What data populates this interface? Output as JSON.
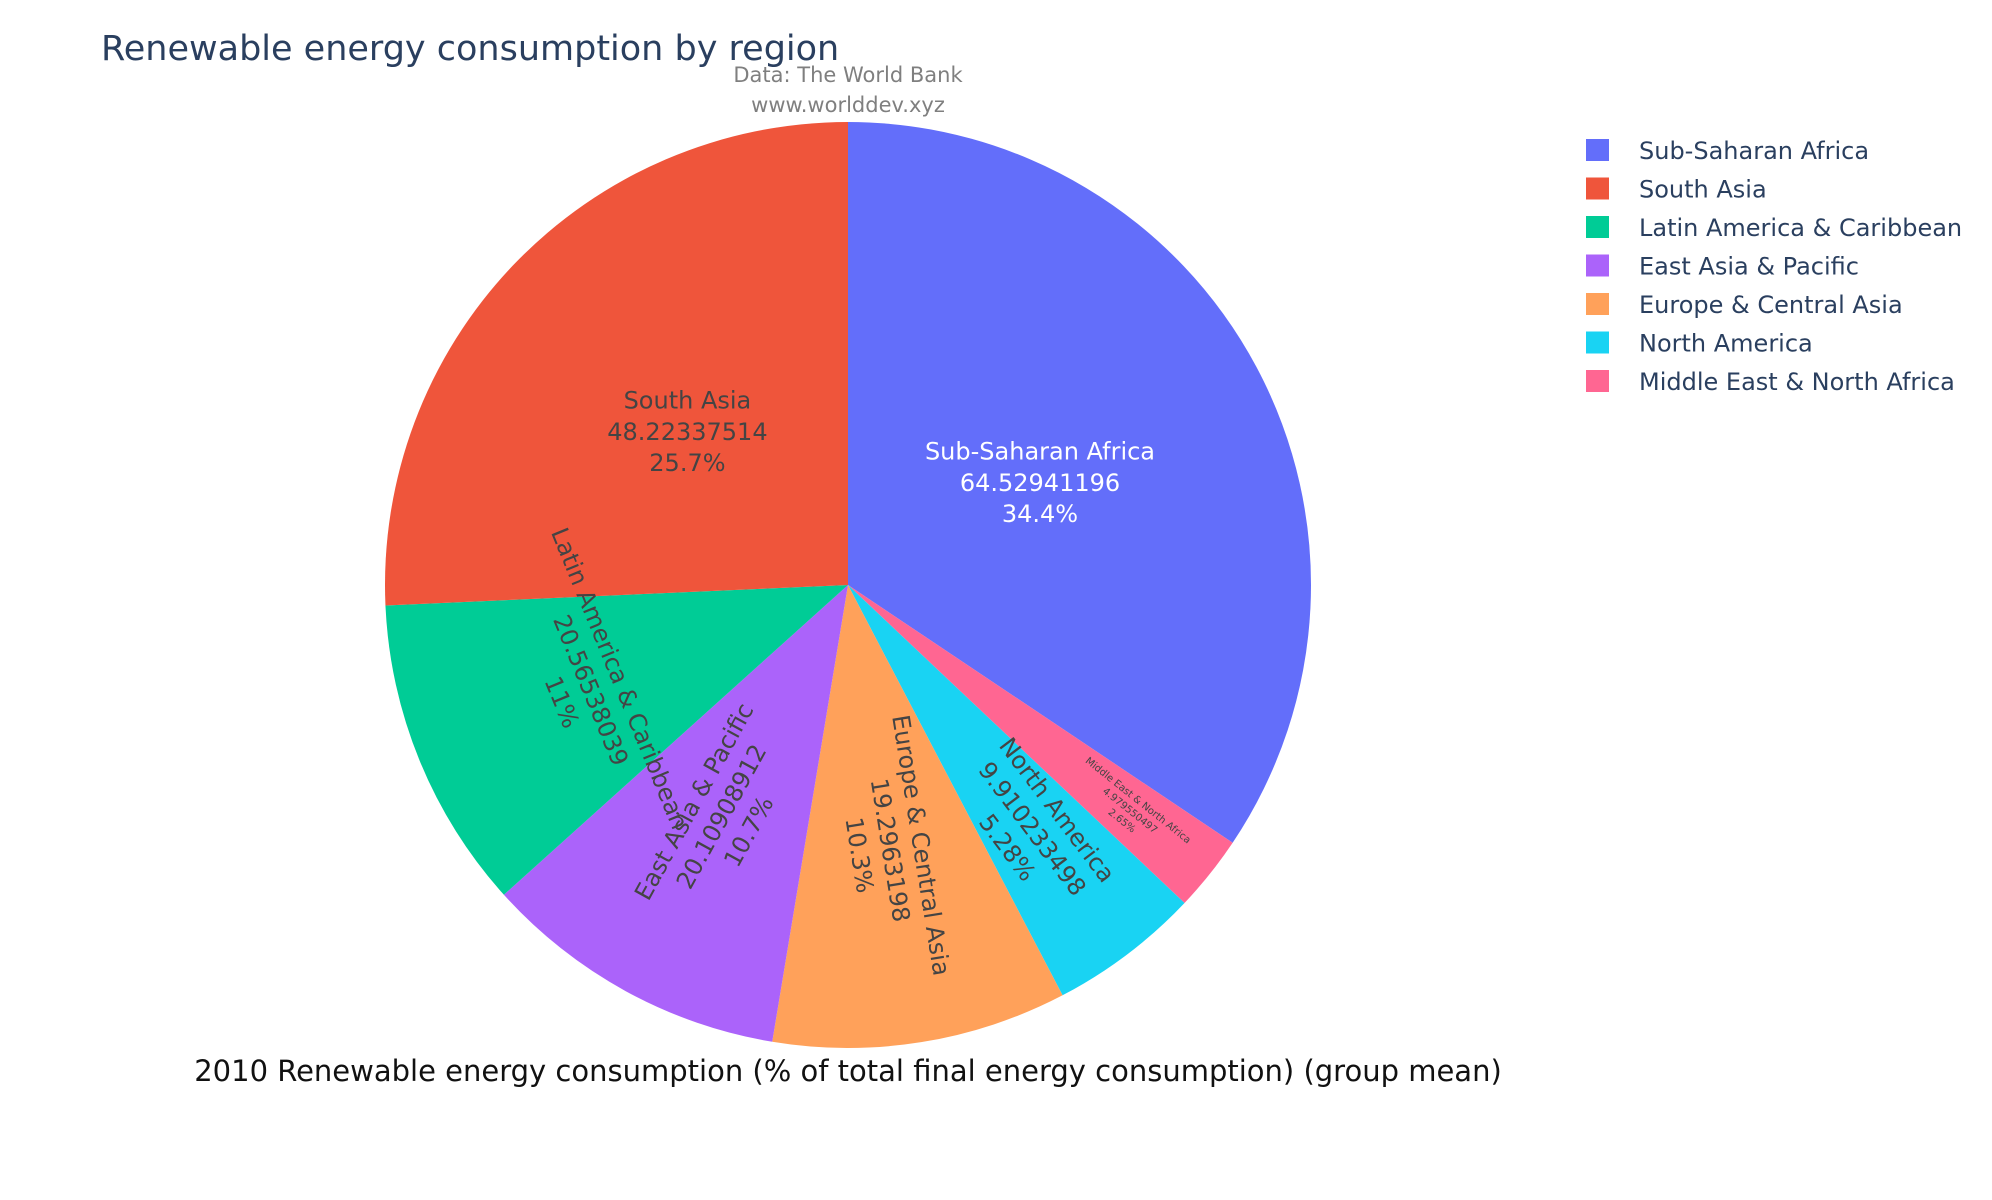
{
  "chart_data": {
    "type": "pie",
    "title": "Renewable energy consumption by region",
    "source_line1": "Data: The World Bank",
    "source_line2": "www.worlddev.xyz",
    "xlabel": "2010 Renewable energy consumption (% of total final energy consumption) (group mean)",
    "legend_position": "top-right",
    "slices": [
      {
        "label": "Sub-Saharan Africa",
        "value": 64.52941196,
        "value_text": "64.52941196",
        "percent": "34.4%",
        "color": "#636efa",
        "text_color": "#ffffff"
      },
      {
        "label": "Middle East & North Africa",
        "value": 4.979550497,
        "value_text": "4.979550497",
        "percent": "2.65%",
        "color": "#ff6692",
        "text_color": "#444444"
      },
      {
        "label": "North America",
        "value": 9.910233498,
        "value_text": "9.910233498",
        "percent": "5.28%",
        "color": "#19d3f3",
        "text_color": "#444444"
      },
      {
        "label": "Europe & Central Asia",
        "value": 19.2963198,
        "value_text": "19.2963198",
        "percent": "10.3%",
        "color": "#ffa15a",
        "text_color": "#444444"
      },
      {
        "label": "East Asia & Pacific",
        "value": 20.10908912,
        "value_text": "20.10908912",
        "percent": "10.7%",
        "color": "#ab63fa",
        "text_color": "#444444"
      },
      {
        "label": "Latin America & Caribbean",
        "value": 20.56538039,
        "value_text": "20.56538039",
        "percent": "11%",
        "color": "#00cc96",
        "text_color": "#444444"
      },
      {
        "label": "South Asia",
        "value": 48.22337514,
        "value_text": "48.22337514",
        "percent": "25.7%",
        "color": "#ef553b",
        "text_color": "#444444"
      }
    ],
    "legend_order": [
      "Sub-Saharan Africa",
      "South Asia",
      "Latin America & Caribbean",
      "East Asia & Pacific",
      "Europe & Central Asia",
      "North America",
      "Middle East & North Africa"
    ]
  }
}
